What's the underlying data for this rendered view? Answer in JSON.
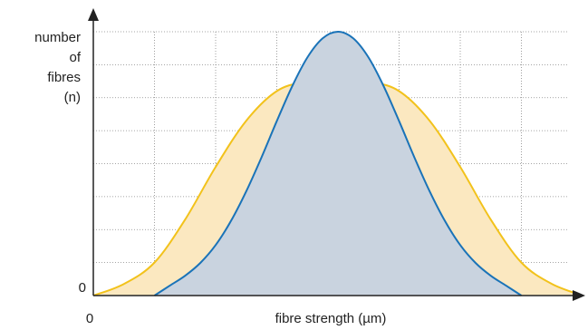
{
  "chart_data": {
    "type": "area",
    "xlabel": "fibre strength (µm)",
    "ylabel": [
      "number",
      "of",
      "fibres",
      "(n)"
    ],
    "xlim": [
      0,
      8
    ],
    "ylim": [
      0,
      8
    ],
    "xticks": [
      0
    ],
    "yticks": [
      0
    ],
    "grid": true,
    "xgrid": [
      1,
      2,
      3,
      4,
      5,
      6,
      7
    ],
    "ygrid": [
      1,
      2,
      3,
      4,
      5,
      6,
      7,
      8
    ],
    "series": [
      {
        "color": "#f2c21b",
        "fill": "#fbe8c0",
        "x": [
          0,
          0.5,
          1,
          1.5,
          2,
          2.5,
          3,
          3.5,
          4,
          4.5,
          5,
          5.5,
          6,
          6.5,
          7,
          7.5,
          8
        ],
        "values": [
          0,
          0.35,
          1.0,
          2.3,
          3.9,
          5.3,
          6.2,
          6.5,
          6.6,
          6.5,
          6.2,
          5.3,
          3.9,
          2.3,
          1.0,
          0.35,
          0
        ]
      },
      {
        "color": "#1a73b8",
        "fill": "#c9d3df",
        "x": [
          1,
          1.25,
          1.5,
          1.75,
          2,
          2.25,
          2.5,
          2.75,
          3,
          3.25,
          3.5,
          3.75,
          4,
          4.25,
          4.5,
          4.75,
          5,
          5.25,
          5.5,
          5.75,
          6,
          6.25,
          6.5,
          6.75,
          7
        ],
        "values": [
          0,
          0.3,
          0.6,
          0.99,
          1.53,
          2.26,
          3.16,
          4.19,
          5.29,
          6.34,
          7.22,
          7.8,
          8,
          7.8,
          7.22,
          6.34,
          5.29,
          4.19,
          3.16,
          2.26,
          1.53,
          0.99,
          0.6,
          0.3,
          0
        ]
      }
    ]
  }
}
